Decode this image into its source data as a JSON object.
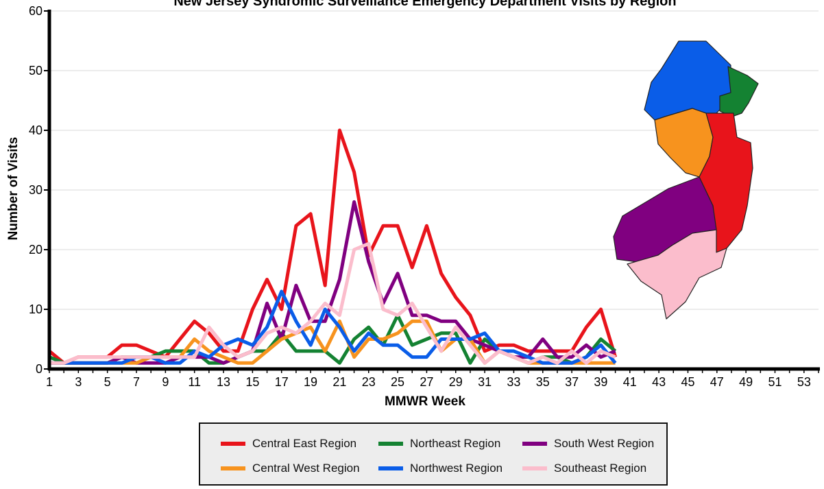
{
  "chart_data": {
    "type": "line",
    "title": "New Jersey Syndromic Surveillance Emergency Department Visits by Region",
    "xlabel": "MMWR Week",
    "ylabel": "Number of Visits",
    "xlim": [
      1,
      54
    ],
    "ylim": [
      0,
      60
    ],
    "yticks": [
      0,
      10,
      20,
      30,
      40,
      50,
      60
    ],
    "xticks": [
      1,
      3,
      5,
      7,
      9,
      11,
      13,
      15,
      17,
      19,
      21,
      23,
      25,
      27,
      29,
      31,
      33,
      35,
      37,
      39,
      41,
      43,
      45,
      47,
      49,
      51,
      53
    ],
    "grid": "horizontal",
    "legend_position": "bottom",
    "x": [
      1,
      2,
      3,
      4,
      5,
      6,
      7,
      8,
      9,
      10,
      11,
      12,
      13,
      14,
      15,
      16,
      17,
      18,
      19,
      20,
      21,
      22,
      23,
      24,
      25,
      26,
      27,
      28,
      29,
      30,
      31,
      32,
      33,
      34,
      35,
      36,
      37,
      38,
      39,
      40
    ],
    "series": [
      {
        "name": "Central East Region",
        "color": "#e8141b",
        "values": [
          3,
          1,
          2,
          2,
          2,
          4,
          4,
          3,
          2,
          5,
          8,
          6,
          3,
          3,
          10,
          15,
          10,
          24,
          26,
          14,
          40,
          33,
          19,
          24,
          24,
          17,
          24,
          16,
          12,
          9,
          3,
          4,
          4,
          3,
          3,
          3,
          3,
          7,
          10,
          2
        ]
      },
      {
        "name": "Northeast Region",
        "color": "#148232",
        "values": [
          2,
          1,
          1,
          1,
          1,
          2,
          2,
          2,
          3,
          3,
          3,
          1,
          1,
          2,
          3,
          3,
          6,
          3,
          3,
          3,
          1,
          5,
          7,
          4,
          9,
          4,
          5,
          6,
          6,
          1,
          5,
          3,
          2,
          1,
          2,
          2,
          1,
          2,
          5,
          3
        ]
      },
      {
        "name": "South West Region",
        "color": "#800080",
        "values": [
          1,
          1,
          1,
          1,
          1,
          2,
          1,
          1,
          1,
          2,
          2,
          2,
          1,
          2,
          3,
          11,
          5,
          14,
          8,
          8,
          15,
          28,
          18,
          11,
          16,
          9,
          9,
          8,
          8,
          5,
          4,
          3,
          2,
          2,
          5,
          2,
          2,
          4,
          2,
          3
        ]
      },
      {
        "name": "Central West Region",
        "color": "#f7931e",
        "values": [
          1,
          1,
          1,
          1,
          1,
          1,
          1,
          2,
          2,
          2,
          5,
          3,
          2,
          1,
          1,
          3,
          5,
          6,
          7,
          3,
          8,
          2,
          5,
          5,
          6,
          8,
          8,
          3,
          5,
          5,
          1,
          3,
          2,
          1,
          1,
          1,
          1,
          1,
          1,
          1
        ]
      },
      {
        "name": "Northwest Region",
        "color": "#0a5de8",
        "values": [
          1,
          1,
          1,
          1,
          1,
          1,
          2,
          2,
          1,
          1,
          3,
          2,
          4,
          5,
          4,
          7,
          13,
          8,
          4,
          10,
          7,
          3,
          6,
          4,
          4,
          2,
          2,
          5,
          5,
          5,
          6,
          3,
          3,
          2,
          1,
          1,
          1,
          2,
          4,
          1
        ]
      },
      {
        "name": "Southeast Region",
        "color": "#fbbdcc",
        "values": [
          1,
          1,
          2,
          2,
          2,
          2,
          2,
          2,
          2,
          2,
          2,
          7,
          4,
          2,
          3,
          6,
          7,
          6,
          8,
          11,
          9,
          20,
          21,
          10,
          9,
          11,
          7,
          3,
          7,
          4,
          1,
          3,
          2,
          1,
          2,
          1,
          3,
          1,
          3,
          2
        ]
      }
    ],
    "legend": {
      "row1": [
        "Central East Region",
        "Northeast Region",
        "South West Region"
      ],
      "row2": [
        "Central West Region",
        "Northwest Region",
        "Southeast Region"
      ]
    }
  },
  "map_regions": {
    "northwest": "#0a5de8",
    "northeast": "#148232",
    "central_west": "#f7931e",
    "central_east": "#e8141b",
    "south_west": "#800080",
    "southeast": "#fbbdcc"
  }
}
